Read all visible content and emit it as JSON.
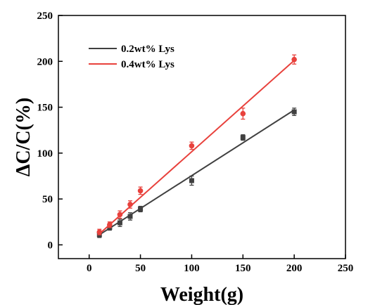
{
  "chart_data": {
    "type": "scatter",
    "xlabel": "Weight(g)",
    "ylabel": "ΔC/C(%)",
    "xlim": [
      -30,
      250
    ],
    "ylim": [
      -15,
      250
    ],
    "xticks": [
      0,
      50,
      100,
      150,
      200,
      250
    ],
    "yticks": [
      0,
      50,
      100,
      150,
      200,
      250
    ],
    "legend_position": "top-left",
    "grid": false,
    "series": [
      {
        "name": "0.2wt% Lys",
        "color": "#404040",
        "marker": "square",
        "x": [
          10,
          20,
          30,
          40,
          50,
          100,
          150,
          200
        ],
        "y": [
          11,
          19,
          24,
          31,
          39,
          70,
          117,
          145
        ],
        "err": [
          3,
          3,
          4,
          4,
          3,
          5,
          3,
          4
        ],
        "fit": {
          "x": [
            10,
            200
          ],
          "y": [
            11,
            147
          ]
        }
      },
      {
        "name": "0.4wt% Lys",
        "color": "#e8413c",
        "marker": "circle",
        "x": [
          10,
          20,
          30,
          40,
          50,
          100,
          150,
          200
        ],
        "y": [
          14,
          22,
          33,
          44,
          59,
          108,
          143,
          202
        ],
        "err": [
          3,
          3,
          4,
          4,
          4,
          4,
          6,
          5
        ],
        "fit": {
          "x": [
            10,
            200
          ],
          "y": [
            12,
            201
          ]
        }
      }
    ]
  }
}
